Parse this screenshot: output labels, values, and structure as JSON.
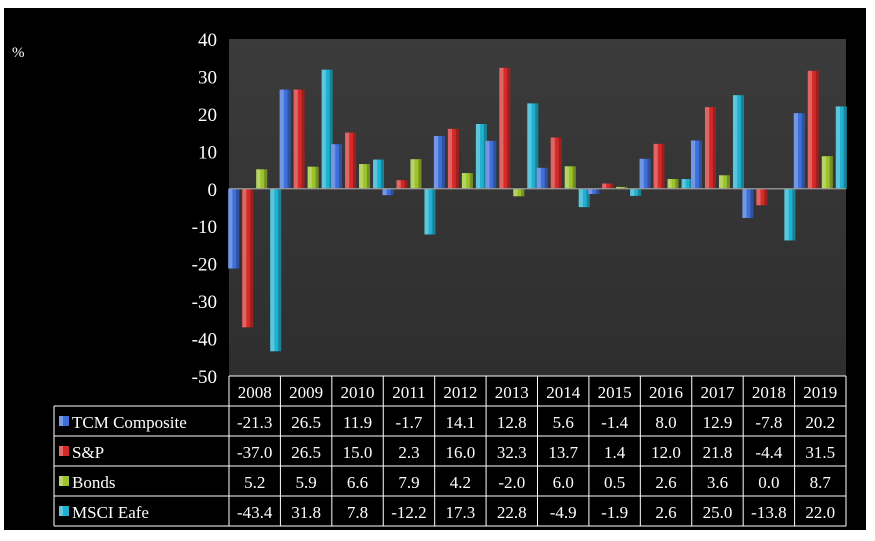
{
  "chart_data": {
    "type": "bar",
    "ylabel": "%",
    "ylim": [
      -50,
      40
    ],
    "yticks": [
      40,
      30,
      20,
      10,
      0,
      -10,
      -20,
      -30,
      -40,
      -50
    ],
    "categories": [
      "2008",
      "2009",
      "2010",
      "2011",
      "2012",
      "2013",
      "2014",
      "2015",
      "2016",
      "2017",
      "2018",
      "2019"
    ],
    "series": [
      {
        "name": "TCM Composite",
        "color": "#3f6fd8",
        "labels": [
          "-21.3",
          "26.5",
          "11.9",
          "-1.7",
          "14.1",
          "12.8",
          "5.6",
          "-1.4",
          "8.0",
          "12.9",
          "-7.8",
          "20.2"
        ],
        "values": [
          -21.3,
          26.5,
          11.9,
          -1.7,
          14.1,
          12.8,
          5.6,
          -1.4,
          8.0,
          12.9,
          -7.8,
          20.2
        ]
      },
      {
        "name": "S&P",
        "color": "#d42a2a",
        "labels": [
          "-37.0",
          "26.5",
          "15.0",
          "2.3",
          "16.0",
          "32.3",
          "13.7",
          "1.4",
          "12.0",
          "21.8",
          "-4.4",
          "31.5"
        ],
        "values": [
          -37.0,
          26.5,
          15.0,
          2.3,
          16.0,
          32.3,
          13.7,
          1.4,
          12.0,
          21.8,
          -4.4,
          31.5
        ]
      },
      {
        "name": "Bonds",
        "color": "#9cc32b",
        "labels": [
          "5.2",
          "5.9",
          "6.6",
          "7.9",
          "4.2",
          "-2.0",
          "6.0",
          "0.5",
          "2.6",
          "3.6",
          "0.0",
          "8.7"
        ],
        "values": [
          5.2,
          5.9,
          6.6,
          7.9,
          4.2,
          -2.0,
          6.0,
          0.5,
          2.6,
          3.6,
          0.0,
          8.7
        ]
      },
      {
        "name": "MSCI Eafe",
        "color": "#1fb1cf",
        "labels": [
          "-43.4",
          "31.8",
          "7.8",
          "-12.2",
          "17.3",
          "22.8",
          "-4.9",
          "-1.9",
          "2.6",
          "25.0",
          "-13.8",
          "22.0"
        ],
        "values": [
          -43.4,
          31.8,
          7.8,
          -12.2,
          17.3,
          22.8,
          -4.9,
          -1.9,
          2.6,
          25.0,
          -13.8,
          22.0
        ]
      }
    ],
    "grid": false,
    "legend": "data-table"
  }
}
